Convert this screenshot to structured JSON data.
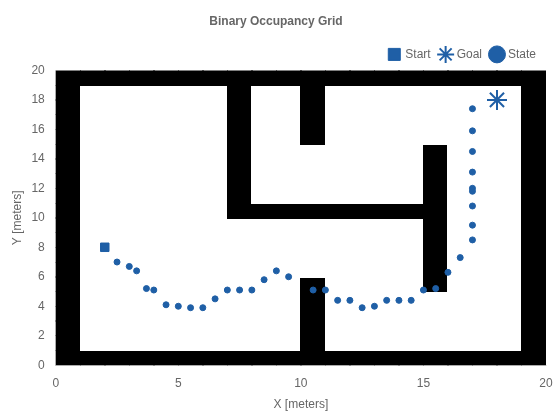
{
  "chart_data": {
    "type": "scatter",
    "title": "Binary Occupancy Grid",
    "xlabel": "X [meters]",
    "ylabel": "Y [meters]",
    "xlim": [
      0,
      20
    ],
    "ylim": [
      0,
      20
    ],
    "xticks": [
      0,
      5,
      10,
      15,
      20
    ],
    "yticks": [
      0,
      2,
      4,
      6,
      8,
      10,
      12,
      14,
      16,
      18,
      20
    ],
    "grid": false,
    "legend": "upper right",
    "colors": [
      "#ffffff",
      "#000000"
    ],
    "cells": [
      [
        1,
        1,
        1,
        1,
        1,
        1,
        1,
        1,
        1,
        1,
        1,
        1,
        1,
        1,
        1,
        1,
        1,
        1,
        1,
        1
      ],
      [
        1,
        0,
        0,
        0,
        0,
        0,
        0,
        0,
        0,
        0,
        1,
        0,
        0,
        0,
        0,
        0,
        0,
        0,
        0,
        1
      ],
      [
        1,
        0,
        0,
        0,
        0,
        0,
        0,
        0,
        0,
        0,
        1,
        0,
        0,
        0,
        0,
        0,
        0,
        0,
        0,
        1
      ],
      [
        1,
        0,
        0,
        0,
        0,
        0,
        0,
        0,
        0,
        0,
        1,
        0,
        0,
        0,
        0,
        0,
        0,
        0,
        0,
        1
      ],
      [
        1,
        0,
        0,
        0,
        0,
        0,
        0,
        0,
        0,
        0,
        1,
        0,
        0,
        0,
        0,
        0,
        0,
        0,
        0,
        1
      ],
      [
        1,
        0,
        0,
        0,
        0,
        0,
        0,
        0,
        0,
        0,
        1,
        0,
        0,
        0,
        0,
        1,
        0,
        0,
        0,
        1
      ],
      [
        1,
        0,
        0,
        0,
        0,
        0,
        0,
        0,
        0,
        0,
        0,
        0,
        0,
        0,
        0,
        1,
        0,
        0,
        0,
        1
      ],
      [
        1,
        0,
        0,
        0,
        0,
        0,
        0,
        0,
        0,
        0,
        0,
        0,
        0,
        0,
        0,
        1,
        0,
        0,
        0,
        1
      ],
      [
        1,
        0,
        0,
        0,
        0,
        0,
        0,
        0,
        0,
        0,
        0,
        0,
        0,
        0,
        0,
        1,
        0,
        0,
        0,
        1
      ],
      [
        1,
        0,
        0,
        0,
        0,
        0,
        0,
        0,
        0,
        0,
        0,
        0,
        0,
        0,
        0,
        1,
        0,
        0,
        0,
        1
      ],
      [
        1,
        0,
        0,
        0,
        0,
        0,
        0,
        1,
        1,
        1,
        1,
        1,
        1,
        1,
        1,
        1,
        0,
        0,
        0,
        1
      ],
      [
        1,
        0,
        0,
        0,
        0,
        0,
        0,
        1,
        0,
        0,
        0,
        0,
        0,
        0,
        0,
        1,
        0,
        0,
        0,
        1
      ],
      [
        1,
        0,
        0,
        0,
        0,
        0,
        0,
        1,
        0,
        0,
        0,
        0,
        0,
        0,
        0,
        1,
        0,
        0,
        0,
        1
      ],
      [
        1,
        0,
        0,
        0,
        0,
        0,
        0,
        1,
        0,
        0,
        0,
        0,
        0,
        0,
        0,
        1,
        0,
        0,
        0,
        1
      ],
      [
        1,
        0,
        0,
        0,
        0,
        0,
        0,
        1,
        0,
        0,
        0,
        0,
        0,
        0,
        0,
        1,
        0,
        0,
        0,
        1
      ],
      [
        1,
        0,
        0,
        0,
        0,
        0,
        0,
        1,
        0,
        0,
        1,
        0,
        0,
        0,
        0,
        0,
        0,
        0,
        0,
        1
      ],
      [
        1,
        0,
        0,
        0,
        0,
        0,
        0,
        1,
        0,
        0,
        1,
        0,
        0,
        0,
        0,
        0,
        0,
        0,
        0,
        1
      ],
      [
        1,
        0,
        0,
        0,
        0,
        0,
        0,
        1,
        0,
        0,
        1,
        0,
        0,
        0,
        0,
        0,
        0,
        0,
        0,
        1
      ],
      [
        1,
        0,
        0,
        0,
        0,
        0,
        0,
        1,
        0,
        0,
        1,
        0,
        0,
        0,
        0,
        0,
        0,
        0,
        0,
        1
      ],
      [
        1,
        1,
        1,
        1,
        1,
        1,
        1,
        1,
        1,
        1,
        1,
        1,
        1,
        1,
        1,
        1,
        1,
        1,
        1,
        1
      ]
    ],
    "series": [
      {
        "name": "Start",
        "color": "#1f5fa6",
        "marker": "square",
        "x": [
          2
        ],
        "values": [
          8
        ]
      },
      {
        "name": "Goal",
        "color": "#1f5fa6",
        "marker": "star",
        "x": [
          18
        ],
        "values": [
          18
        ]
      },
      {
        "name": "State",
        "color": "#1f5fa6",
        "marker": "point",
        "x": [
          2.5,
          3.0,
          3.3,
          3.7,
          4.0,
          4.5,
          5.0,
          5.5,
          6.0,
          6.5,
          7.0,
          7.5,
          8.0,
          8.5,
          9.0,
          9.5,
          10.5,
          11.0,
          11.5,
          12.0,
          12.5,
          13.0,
          13.5,
          14.0,
          14.5,
          15.0,
          15.5,
          16.0,
          16.5,
          17.0,
          17.0,
          17.0,
          17.0,
          17.0,
          17.0,
          17.0,
          17.0,
          17.0
        ],
        "values": [
          7.0,
          6.7,
          6.4,
          5.2,
          5.1,
          4.1,
          4.0,
          3.9,
          3.9,
          4.5,
          5.1,
          5.1,
          5.1,
          5.8,
          6.4,
          6.0,
          5.1,
          5.1,
          4.4,
          4.4,
          3.9,
          4.0,
          4.4,
          4.4,
          4.4,
          5.1,
          5.2,
          6.3,
          7.3,
          8.5,
          9.5,
          10.8,
          11.8,
          12.0,
          13.1,
          14.5,
          15.9,
          17.4
        ]
      }
    ]
  }
}
